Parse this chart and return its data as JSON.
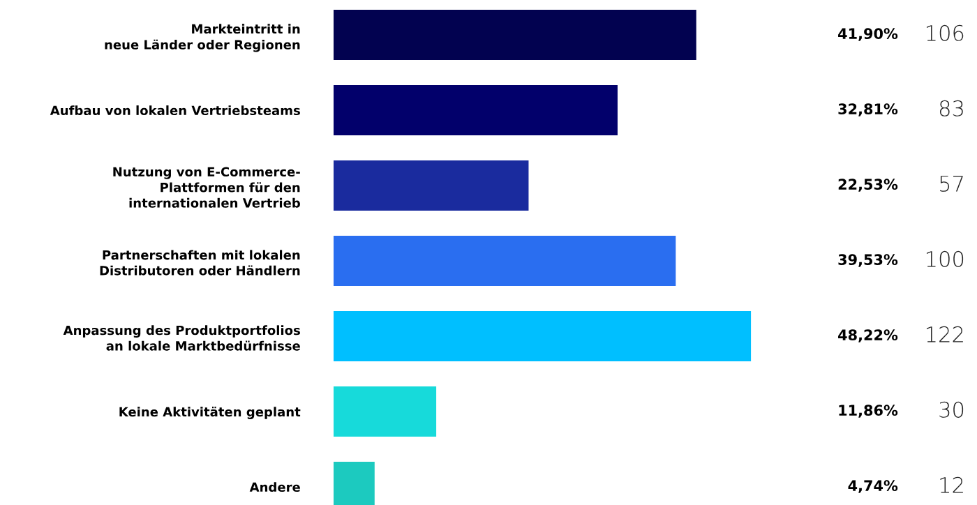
{
  "chart_data": {
    "type": "bar",
    "orientation": "horizontal",
    "categories": [
      "Markteintritt in\nneue Länder oder Regionen",
      "Aufbau von lokalen Vertriebsteams",
      "Nutzung von E-Commerce-\nPlattformen für den\ninternationalen Vertrieb",
      "Partnerschaften mit lokalen\nDistributoren oder Händlern",
      "Anpassung des Produktportfolios\nan lokale Marktbedürfnisse",
      "Keine Aktivitäten geplant",
      "Andere"
    ],
    "values": [
      41.9,
      32.81,
      22.53,
      39.53,
      48.22,
      11.86,
      4.74
    ],
    "value_labels": [
      "41,90%",
      "32,81%",
      "22,53%",
      "39,53%",
      "48,22%",
      "11,86%",
      "4,74%"
    ],
    "colors": [
      "#020250",
      "#02006b",
      "#1a2b9e",
      "#2a6ef0",
      "#00bfff",
      "#17dada",
      "#1ccabf"
    ],
    "grid": false,
    "legend": false,
    "annotations": [
      "106",
      "83",
      "57",
      "100",
      "122",
      "30",
      "12"
    ]
  }
}
